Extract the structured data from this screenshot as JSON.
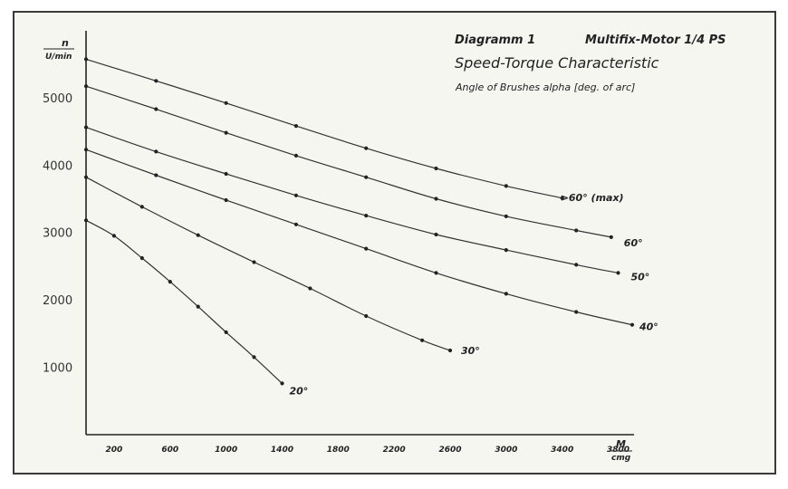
{
  "chart_data": {
    "type": "line",
    "header": "Diagramm 1",
    "motor": "Multifix-Motor 1/4 PS",
    "title": "Speed-Torque Characteristic",
    "subtitle": "Angle of Brushes alpha [deg. of arc]",
    "ylabel_top": "n",
    "ylabel_bottom": "U/min",
    "xlabel_top": "M",
    "xlabel_bottom": "cmg",
    "xlim": [
      0,
      3900
    ],
    "ylim": [
      0,
      6100
    ],
    "xticks": [
      200,
      600,
      1000,
      1400,
      1800,
      2200,
      2600,
      3000,
      3400,
      3800
    ],
    "xtick_labels": [
      "200",
      "600",
      "1000",
      "1400",
      "1800",
      "2200",
      "2600",
      "3000",
      "3400",
      "3800"
    ],
    "yticks": [
      1000,
      2000,
      3000,
      4000,
      5000
    ],
    "ytick_labels": [
      "1000",
      "2000",
      "3000",
      "4000",
      "5000"
    ],
    "series": [
      {
        "name": "20°",
        "x": [
          0,
          200,
          400,
          600,
          800,
          1000,
          1200,
          1400
        ],
        "y": [
          3180,
          2950,
          2620,
          2270,
          1900,
          1520,
          1150,
          760
        ]
      },
      {
        "name": "30°",
        "x": [
          0,
          400,
          800,
          1200,
          1600,
          2000,
          2400,
          2600
        ],
        "y": [
          3820,
          3380,
          2960,
          2560,
          2170,
          1760,
          1400,
          1250
        ]
      },
      {
        "name": "40°",
        "x": [
          0,
          500,
          1000,
          1500,
          2000,
          2500,
          3000,
          3500,
          3900
        ],
        "y": [
          4230,
          3850,
          3480,
          3120,
          2760,
          2400,
          2090,
          1820,
          1630
        ]
      },
      {
        "name": "50°",
        "x": [
          0,
          500,
          1000,
          1500,
          2000,
          2500,
          3000,
          3500,
          3800
        ],
        "y": [
          4560,
          4200,
          3870,
          3550,
          3250,
          2970,
          2740,
          2520,
          2400
        ]
      },
      {
        "name": "60°",
        "x": [
          0,
          500,
          1000,
          1500,
          2000,
          2500,
          3000,
          3500,
          3750
        ],
        "y": [
          5170,
          4830,
          4480,
          4140,
          3820,
          3500,
          3240,
          3030,
          2930
        ]
      },
      {
        "name": ">60° (max)",
        "x": [
          0,
          500,
          1000,
          1500,
          2000,
          2500,
          3000,
          3400
        ],
        "y": [
          5570,
          5250,
          4920,
          4580,
          4250,
          3950,
          3690,
          3510
        ]
      }
    ],
    "legend": "inline labels at line ends",
    "grid": false
  }
}
